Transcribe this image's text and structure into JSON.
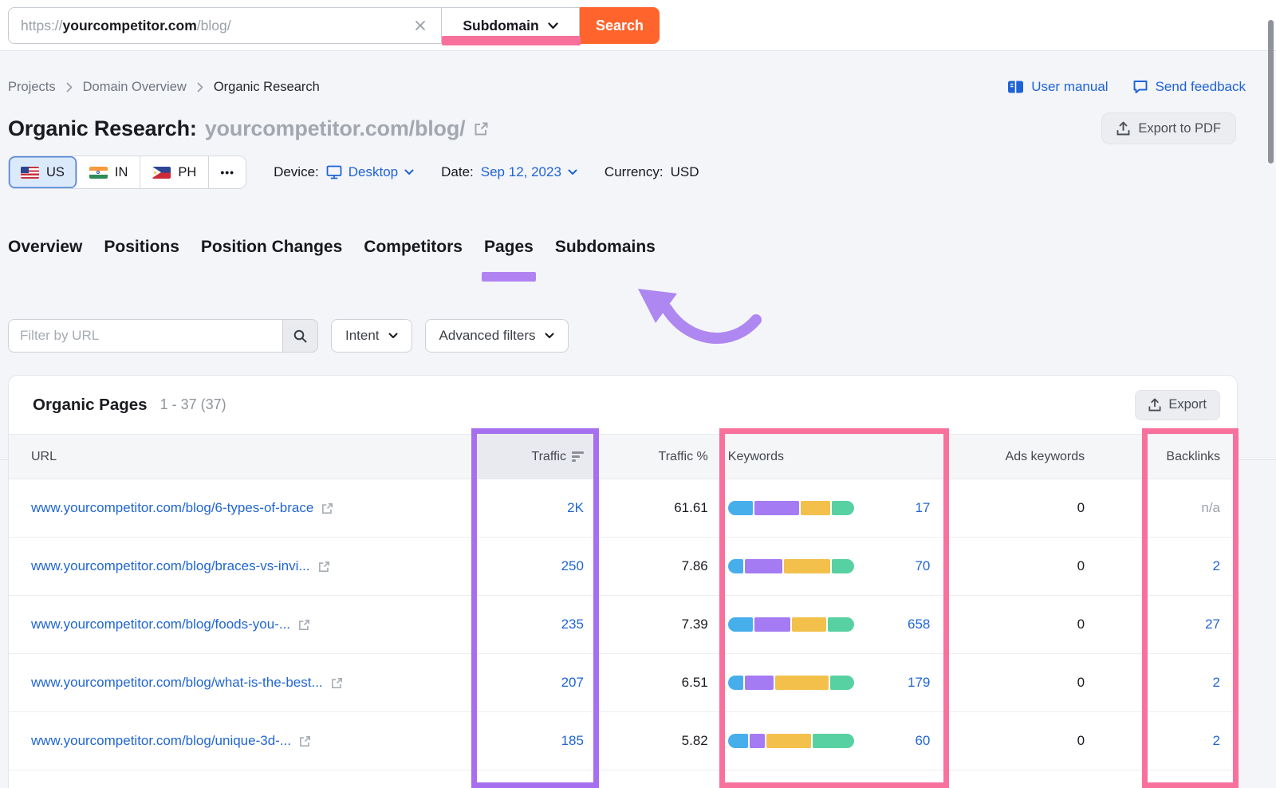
{
  "topbar": {
    "url_prefix": "https://",
    "url_domain": "yourcompetitor.com",
    "url_path": "/blog/",
    "scope_selector": "Subdomain",
    "search_button": "Search"
  },
  "breadcrumb": {
    "items": [
      "Projects",
      "Domain Overview",
      "Organic Research"
    ]
  },
  "header_links": {
    "user_manual": "User manual",
    "send_feedback": "Send feedback"
  },
  "title": {
    "label": "Organic Research:",
    "domain": "yourcompetitor.com/blog/",
    "export_pdf": "Export to PDF"
  },
  "filters": {
    "countries": [
      {
        "code": "US"
      },
      {
        "code": "IN"
      },
      {
        "code": "PH"
      }
    ],
    "more_label": "•••",
    "device_label": "Device:",
    "device_value": "Desktop",
    "date_label": "Date:",
    "date_value": "Sep 12, 2023",
    "currency_label": "Currency:",
    "currency_value": "USD"
  },
  "nav": {
    "tabs": [
      "Overview",
      "Positions",
      "Position Changes",
      "Competitors",
      "Pages",
      "Subdomains"
    ],
    "active": "Pages"
  },
  "filter_row": {
    "placeholder": "Filter by URL",
    "intent_label": "Intent",
    "advanced_label": "Advanced filters"
  },
  "table": {
    "title": "Organic Pages",
    "range": "1 - 37 (37)",
    "export_label": "Export",
    "columns": [
      "URL",
      "Traffic",
      "Traffic %",
      "Keywords",
      "Ads keywords",
      "Backlinks"
    ],
    "rows": [
      {
        "url": "www.yourcompetitor.com/blog/6-types-of-brace",
        "traffic": "2K",
        "traffic_pct": "61.61",
        "keywords": "17",
        "ads_keywords": "0",
        "backlinks": "n/a",
        "intent_bar": [
          20,
          36,
          24,
          18
        ]
      },
      {
        "url": "www.yourcompetitor.com/blog/braces-vs-invi...",
        "traffic": "250",
        "traffic_pct": "7.86",
        "keywords": "70",
        "ads_keywords": "0",
        "backlinks": "2",
        "intent_bar": [
          12,
          30,
          37,
          18
        ]
      },
      {
        "url": "www.yourcompetitor.com/blog/foods-you-...",
        "traffic": "235",
        "traffic_pct": "7.39",
        "keywords": "658",
        "ads_keywords": "0",
        "backlinks": "27",
        "intent_bar": [
          20,
          28,
          27,
          21
        ]
      },
      {
        "url": "www.yourcompetitor.com/blog/what-is-the-best...",
        "traffic": "207",
        "traffic_pct": "6.51",
        "keywords": "179",
        "ads_keywords": "0",
        "backlinks": "2",
        "intent_bar": [
          12,
          23,
          42,
          19
        ]
      },
      {
        "url": "www.yourcompetitor.com/blog/unique-3d-...",
        "traffic": "185",
        "traffic_pct": "5.82",
        "keywords": "60",
        "ads_keywords": "0",
        "backlinks": "2",
        "intent_bar": [
          16,
          12,
          36,
          33
        ]
      }
    ]
  },
  "colors": {
    "accent_orange": "#FF642D",
    "highlight_pink": "#F8719D",
    "highlight_purple": "#A56FF0",
    "tab_underline_purple": "#B183F2",
    "arrow_purple": "#AE87F0",
    "link_blue": "#2166D2",
    "intent": [
      "#47AEEC",
      "#A47BF2",
      "#F3C04B",
      "#57D1A1"
    ]
  }
}
